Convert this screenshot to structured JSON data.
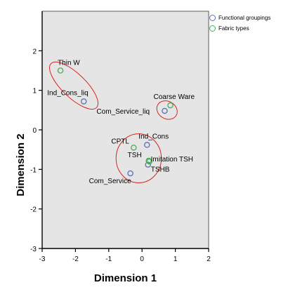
{
  "chart_data": {
    "type": "scatter",
    "xlabel": "Dimension 1",
    "ylabel": "Dimension 2",
    "xlim": [
      -3,
      2
    ],
    "ylim": [
      -3,
      3
    ],
    "xticks": [
      -3,
      -2,
      -1,
      0,
      1,
      2
    ],
    "yticks": [
      -3,
      -2,
      -1,
      0,
      1,
      2
    ],
    "grid": false,
    "legend_position": "top-right",
    "background_color": "#e5e5e5",
    "series": [
      {
        "name": "Functional groupings",
        "color": "#5b6fb5",
        "points": [
          {
            "label": "Ind_Cons_liq",
            "x": -1.75,
            "y": 0.72
          },
          {
            "label": "Com_Service_liq",
            "x": 0.68,
            "y": 0.48
          },
          {
            "label": "Ind_Cons",
            "x": 0.15,
            "y": -0.38
          },
          {
            "label": "TSHB",
            "x": 0.18,
            "y": -0.88
          },
          {
            "label": "Com_Service",
            "x": -0.35,
            "y": -1.1
          }
        ]
      },
      {
        "name": "Fabric types",
        "color": "#3fb34f",
        "points": [
          {
            "label": "Thin W",
            "x": -2.45,
            "y": 1.5
          },
          {
            "label": "Coarse Ware",
            "x": 0.85,
            "y": 0.62
          },
          {
            "label": "CPTL",
            "x": -0.25,
            "y": -0.45
          },
          {
            "label": "TSH",
            "x": 0.2,
            "y": -0.78
          },
          {
            "label": "Imitation TSH",
            "x": 0.22,
            "y": -0.8
          }
        ]
      }
    ],
    "annotations": [
      {
        "shape": "ellipse",
        "color": "#e02020",
        "cx": -2.05,
        "cy": 1.12,
        "rx": 0.95,
        "ry": 0.3,
        "angle_deg": 44
      },
      {
        "shape": "ellipse",
        "color": "#e02020",
        "cx": 0.75,
        "cy": 0.5,
        "rx": 0.32,
        "ry": 0.22,
        "angle_deg": 30
      },
      {
        "shape": "ellipse",
        "color": "#e02020",
        "cx": -0.1,
        "cy": -0.72,
        "rx": 0.68,
        "ry": 0.62,
        "angle_deg": 0
      }
    ]
  }
}
